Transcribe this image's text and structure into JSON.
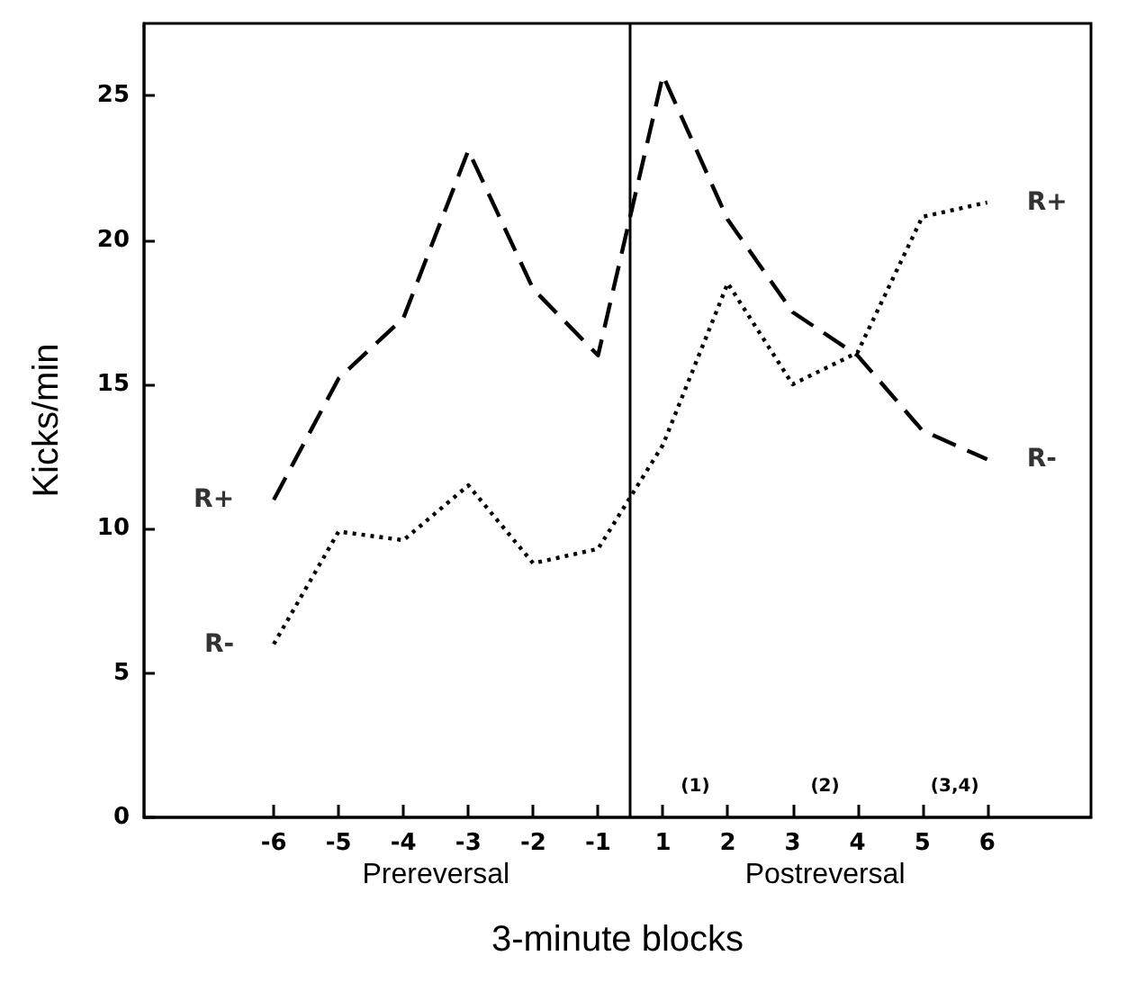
{
  "chart_data": {
    "type": "line",
    "xlabel": "3-minute blocks",
    "ylabel": "Kicks/min",
    "categories": [
      "-6",
      "-5",
      "-4",
      "-3",
      "-2",
      "-1",
      "1",
      "2",
      "3",
      "4",
      "5",
      "6"
    ],
    "series": [
      {
        "color": "#000000",
        "line_style": "dashed",
        "values": [
          11.0,
          15.2,
          17.3,
          23.1,
          18.3,
          16.0,
          25.7,
          20.7,
          17.5,
          16.0,
          13.4,
          12.4
        ]
      },
      {
        "color": "#000000",
        "line_style": "dotted",
        "values": [
          6.0,
          9.9,
          9.6,
          11.5,
          8.8,
          9.3,
          12.9,
          18.5,
          15.0,
          16.1,
          20.8,
          21.3
        ]
      }
    ],
    "ylim": [
      0,
      27.5
    ],
    "yticks": [
      0,
      5,
      10,
      15,
      20,
      25
    ],
    "annotations": [
      {
        "text": "R+",
        "x": "-6",
        "y": 11.0
      },
      {
        "text": "R-",
        "x": "-6",
        "y": 6.0
      },
      {
        "text": "R+",
        "x": "6",
        "y": 21.3
      },
      {
        "text": "R-",
        "x": "6",
        "y": 12.4
      },
      "Prereversal",
      "Postreversal",
      "(1)",
      "(2)",
      "(3,4)"
    ],
    "grid": false,
    "marker": "none"
  }
}
